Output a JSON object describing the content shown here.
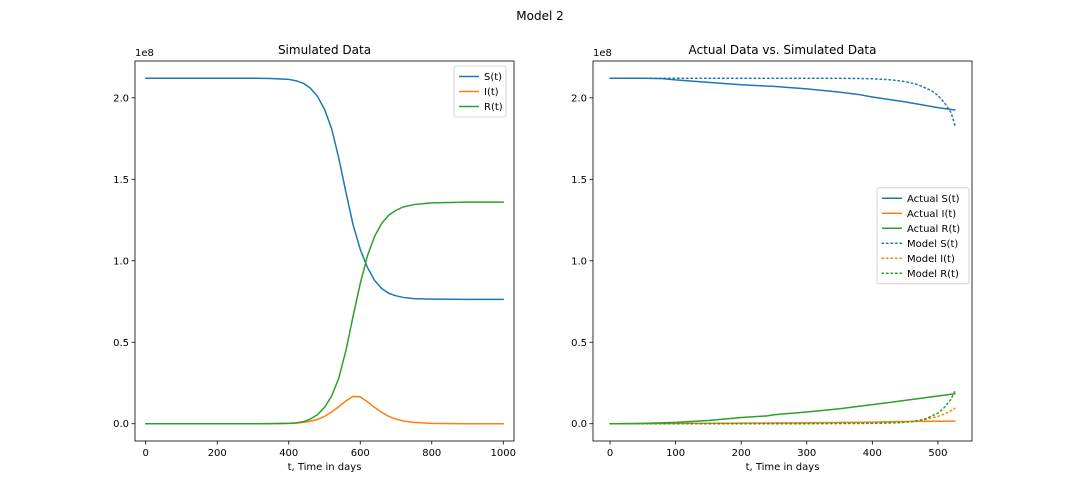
{
  "figure": {
    "suptitle": "Model 2"
  },
  "colors": {
    "S": "#1f77b4",
    "I": "#ff7f0e",
    "R": "#2ca02c",
    "axis": "#000000",
    "legend_border": "#cccccc"
  },
  "chart_data": [
    {
      "type": "line",
      "title": "Simulated Data",
      "xlabel": "t, Time in days",
      "ylabel": "",
      "y_offset_label": "1e8",
      "xlim": [
        -30,
        1030
      ],
      "ylim": [
        -10600000.0,
        222600000.0
      ],
      "xticks": [
        0,
        200,
        400,
        600,
        800,
        1000
      ],
      "xtick_labels": [
        "0",
        "200",
        "400",
        "600",
        "800",
        "1000"
      ],
      "yticks": [
        0,
        50000000.0,
        100000000.0,
        150000000.0,
        200000000.0
      ],
      "ytick_labels": [
        "0.0",
        "0.5",
        "1.0",
        "1.5",
        "2.0"
      ],
      "grid": false,
      "legend": "top-right",
      "series": [
        {
          "name": "S(t)",
          "color_key": "S",
          "style": "solid",
          "x": [
            0,
            100,
            200,
            300,
            350,
            400,
            420,
            440,
            460,
            480,
            500,
            520,
            540,
            560,
            580,
            600,
            620,
            640,
            660,
            680,
            700,
            720,
            750,
            800,
            850,
            900,
            1000
          ],
          "y": [
            212000000.0,
            212000000.0,
            212000000.0,
            212000000.0,
            211900000.0,
            211300000.0,
            210500000.0,
            209000000.0,
            206000000.0,
            201000000.0,
            193000000.0,
            181000000.0,
            163000000.0,
            142000000.0,
            122000000.0,
            107000000.0,
            96000000.0,
            88000000.0,
            83000000.0,
            80000000.0,
            78500000.0,
            77500000.0,
            76800000.0,
            76500000.0,
            76400000.0,
            76300000.0,
            76300000.0
          ]
        },
        {
          "name": "I(t)",
          "color_key": "I",
          "style": "solid",
          "x": [
            0,
            200,
            300,
            350,
            400,
            420,
            440,
            460,
            480,
            500,
            520,
            540,
            560,
            580,
            600,
            620,
            640,
            660,
            680,
            700,
            720,
            750,
            800,
            850,
            900,
            1000
          ],
          "y": [
            0,
            0,
            10000.0,
            50000.0,
            200000.0,
            400000.0,
            800000.0,
            1500000.0,
            2600000.0,
            4500000.0,
            7200000.0,
            10500000.0,
            14000000.0,
            16800000.0,
            16500000.0,
            13500000.0,
            10000000.0,
            7000000.0,
            4500000.0,
            2800000.0,
            1700000.0,
            800000.0,
            200000.0,
            50000.0,
            10000.0,
            0
          ]
        },
        {
          "name": "R(t)",
          "color_key": "R",
          "style": "solid",
          "x": [
            0,
            200,
            300,
            350,
            400,
            420,
            440,
            460,
            480,
            500,
            520,
            540,
            560,
            580,
            600,
            620,
            640,
            660,
            680,
            700,
            720,
            750,
            800,
            850,
            900,
            1000
          ],
          "y": [
            0,
            0,
            10000.0,
            50000.0,
            200000.0,
            500000.0,
            1200000.0,
            2800000.0,
            5500000.0,
            10000000.0,
            17000000.0,
            28000000.0,
            45000000.0,
            66000000.0,
            86000000.0,
            103000000.0,
            115000000.0,
            123000000.0,
            128000000.0,
            131000000.0,
            133000000.0,
            134500000.0,
            135500000.0,
            135800000.0,
            136000000.0,
            136000000.0
          ]
        }
      ]
    },
    {
      "type": "line",
      "title": "Actual Data vs. Simulated Data",
      "xlabel": "t, Time in days",
      "ylabel": "",
      "y_offset_label": "1e8",
      "xlim": [
        -26,
        552
      ],
      "ylim": [
        -10600000.0,
        222600000.0
      ],
      "xticks": [
        0,
        100,
        200,
        300,
        400,
        500
      ],
      "xtick_labels": [
        "0",
        "100",
        "200",
        "300",
        "400",
        "500"
      ],
      "yticks": [
        0,
        50000000.0,
        100000000.0,
        150000000.0,
        200000000.0
      ],
      "ytick_labels": [
        "0.0",
        "0.5",
        "1.0",
        "1.5",
        "2.0"
      ],
      "grid": false,
      "legend": "center-right",
      "series": [
        {
          "name": "Actual S(t)",
          "color_key": "S",
          "style": "solid",
          "x": [
            0,
            50,
            80,
            100,
            150,
            200,
            250,
            300,
            350,
            380,
            400,
            450,
            500,
            526
          ],
          "y": [
            212000000.0,
            212000000.0,
            211800000.0,
            211000000.0,
            209500000.0,
            208000000.0,
            207000000.0,
            205500000.0,
            203500000.0,
            202000000.0,
            200500000.0,
            197500000.0,
            194000000.0,
            192500000.0
          ]
        },
        {
          "name": "Actual I(t)",
          "color_key": "I",
          "style": "solid",
          "x": [
            0,
            100,
            200,
            300,
            400,
            450,
            500,
            526
          ],
          "y": [
            0,
            200000.0,
            400000.0,
            600000.0,
            1000000.0,
            1400000.0,
            1500000.0,
            1600000.0
          ]
        },
        {
          "name": "Actual R(t)",
          "color_key": "R",
          "style": "solid",
          "x": [
            0,
            50,
            100,
            150,
            200,
            240,
            250,
            300,
            350,
            400,
            450,
            500,
            526
          ],
          "y": [
            0,
            200000.0,
            800000.0,
            2000000.0,
            3800000.0,
            4800000.0,
            5500000.0,
            7200000.0,
            9200000.0,
            11700000.0,
            14300000.0,
            17000000.0,
            18400000.0
          ]
        },
        {
          "name": "Model S(t)",
          "color_key": "S",
          "style": "dotted",
          "x": [
            0,
            100,
            200,
            300,
            350,
            400,
            430,
            450,
            470,
            490,
            500,
            510,
            520,
            526
          ],
          "y": [
            212000000.0,
            212000000.0,
            212000000.0,
            212000000.0,
            212000000.0,
            211700000.0,
            211000000.0,
            210000000.0,
            208000000.0,
            204500000.0,
            201500000.0,
            197000000.0,
            191000000.0,
            183000000.0
          ]
        },
        {
          "name": "Model I(t)",
          "color_key": "I",
          "style": "dotted",
          "x": [
            0,
            200,
            300,
            400,
            440,
            460,
            480,
            500,
            510,
            520,
            526
          ],
          "y": [
            0,
            0,
            50000.0,
            300000.0,
            800000.0,
            1400000.0,
            2500000.0,
            4500000.0,
            6000000.0,
            8000000.0,
            9500000.0
          ]
        },
        {
          "name": "Model R(t)",
          "color_key": "R",
          "style": "dotted",
          "x": [
            0,
            200,
            300,
            400,
            440,
            460,
            480,
            500,
            510,
            520,
            526
          ],
          "y": [
            0,
            0,
            20000.0,
            200000.0,
            600000.0,
            1200000.0,
            2800000.0,
            6500000.0,
            10000000.0,
            15000000.0,
            20000000.0
          ]
        }
      ]
    }
  ]
}
